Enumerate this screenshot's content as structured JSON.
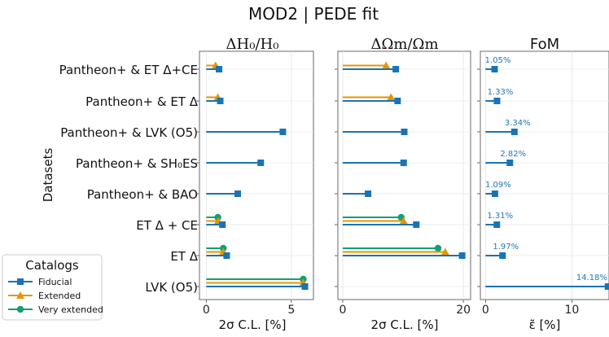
{
  "figure_title": "MOD2 | PEDE fit",
  "colors": {
    "fiducial": "#1a73b5",
    "extended": "#e69500",
    "very_extended": "#13a06e",
    "annotation": "#1a73b5"
  },
  "chart_data": [
    {
      "type": "bar",
      "title": "ΔH₀/H₀",
      "xlabel": "2σ C.L. [%]",
      "ylabel": "Datasets",
      "xlim": [
        -0.4,
        6.3
      ],
      "xticks": [
        0,
        5
      ],
      "categories": [
        "Pantheon+ & ET Δ+CE",
        "Pantheon+ & ET Δ",
        "Pantheon+ & LVK (O5)",
        "Pantheon+ & SH₀ES",
        "Pantheon+ & BAO",
        "ET Δ + CE",
        "ET Δ",
        "LVK (O5)"
      ],
      "series": [
        {
          "name": "Fiducial",
          "values": [
            0.75,
            0.82,
            4.5,
            3.2,
            1.85,
            0.95,
            1.2,
            5.8
          ]
        },
        {
          "name": "Extended",
          "values": [
            0.55,
            0.68,
            null,
            null,
            null,
            0.7,
            1.0,
            5.7
          ]
        },
        {
          "name": "Very extended",
          "values": [
            null,
            null,
            null,
            null,
            null,
            0.68,
            1.0,
            5.7
          ]
        }
      ]
    },
    {
      "type": "bar",
      "title": "ΔΩm/Ωm",
      "xlabel": "2σ C.L. [%]",
      "xlim": [
        -0.8,
        21.2
      ],
      "xticks": [
        0,
        20
      ],
      "categories": [
        "Pantheon+ & ET Δ+CE",
        "Pantheon+ & ET Δ",
        "Pantheon+ & LVK (O5)",
        "Pantheon+ & SH₀ES",
        "Pantheon+ & BAO",
        "ET Δ + CE",
        "ET Δ",
        "LVK (O5)"
      ],
      "series": [
        {
          "name": "Fiducial",
          "values": [
            8.8,
            9.1,
            10.2,
            10.1,
            4.2,
            12.2,
            19.8,
            null
          ]
        },
        {
          "name": "Extended",
          "values": [
            7.2,
            8.0,
            null,
            null,
            null,
            10.1,
            17.0,
            null
          ]
        },
        {
          "name": "Very extended",
          "values": [
            null,
            null,
            null,
            null,
            null,
            9.7,
            15.8,
            null
          ]
        }
      ]
    },
    {
      "type": "bar",
      "title": "FoM",
      "xlabel": "ε̃ [%]",
      "xlim": [
        -0.6,
        14.3
      ],
      "xticks": [
        0,
        10
      ],
      "categories": [
        "Pantheon+ & ET Δ+CE",
        "Pantheon+ & ET Δ",
        "Pantheon+ & LVK (O5)",
        "Pantheon+ & SH₀ES",
        "Pantheon+ & BAO",
        "ET Δ + CE",
        "ET Δ",
        "LVK (O5)"
      ],
      "series": [
        {
          "name": "Fiducial",
          "values": [
            1.05,
            1.33,
            3.34,
            2.82,
            1.09,
            1.31,
            1.97,
            14.18
          ]
        }
      ],
      "data_labels": [
        "1.05%",
        "1.33%",
        "3.34%",
        "2.82%",
        "1.09%",
        "1.31%",
        "1.97%",
        "14.18%"
      ]
    }
  ],
  "legend": {
    "title": "Catalogs",
    "entries": [
      "Fiducial",
      "Extended",
      "Very extended"
    ],
    "position": "bottom-left"
  }
}
